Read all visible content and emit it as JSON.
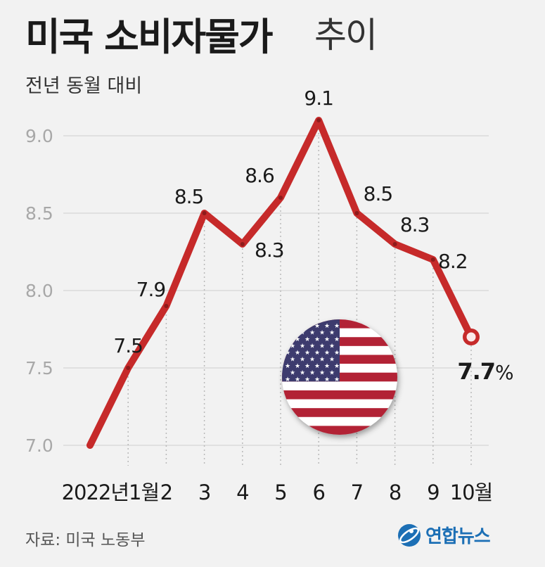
{
  "header": {
    "title_bold": "미국 소비자물가",
    "title_light": "추이",
    "subtitle": "전년 동월 대비"
  },
  "chart_data": {
    "type": "line",
    "title": "미국 소비자물가 추이",
    "subtitle": "전년 동월 대비",
    "categories": [
      "2022년1월",
      "2",
      "3",
      "4",
      "5",
      "6",
      "7",
      "8",
      "9",
      "10월"
    ],
    "x_tick_label_first": "2022년1월",
    "x": [
      "2022-01-start",
      "2022-01",
      "2022-02",
      "2022-03",
      "2022-04",
      "2022-05",
      "2022-06",
      "2022-07",
      "2022-08",
      "2022-09",
      "2022-10"
    ],
    "series": [
      {
        "values": [
          7.0,
          7.5,
          7.9,
          8.5,
          8.3,
          8.6,
          9.1,
          8.5,
          8.3,
          8.2,
          7.7
        ],
        "labels": [
          "",
          "7.5",
          "7.9",
          "8.5",
          "8.3",
          "8.6",
          "9.1",
          "8.5",
          "8.3",
          "8.2",
          "7.7%"
        ],
        "color": "#c62a2a"
      }
    ],
    "y_ticks": [
      "7.0",
      "7.5",
      "8.0",
      "8.5",
      "9.0"
    ],
    "ylim": [
      7.0,
      9.0
    ],
    "grid": true,
    "unit": "%"
  },
  "footer": {
    "source": "자료: 미국 노동부",
    "logo_text": "연합뉴스"
  },
  "colors": {
    "line": "#c62a2a",
    "background": "#f2f2f2",
    "grid": "#d6d6d6",
    "logo": "#1c6fb5"
  },
  "icons": {
    "flag": "us-flag-icon",
    "logo": "yonhap-logo-icon"
  }
}
